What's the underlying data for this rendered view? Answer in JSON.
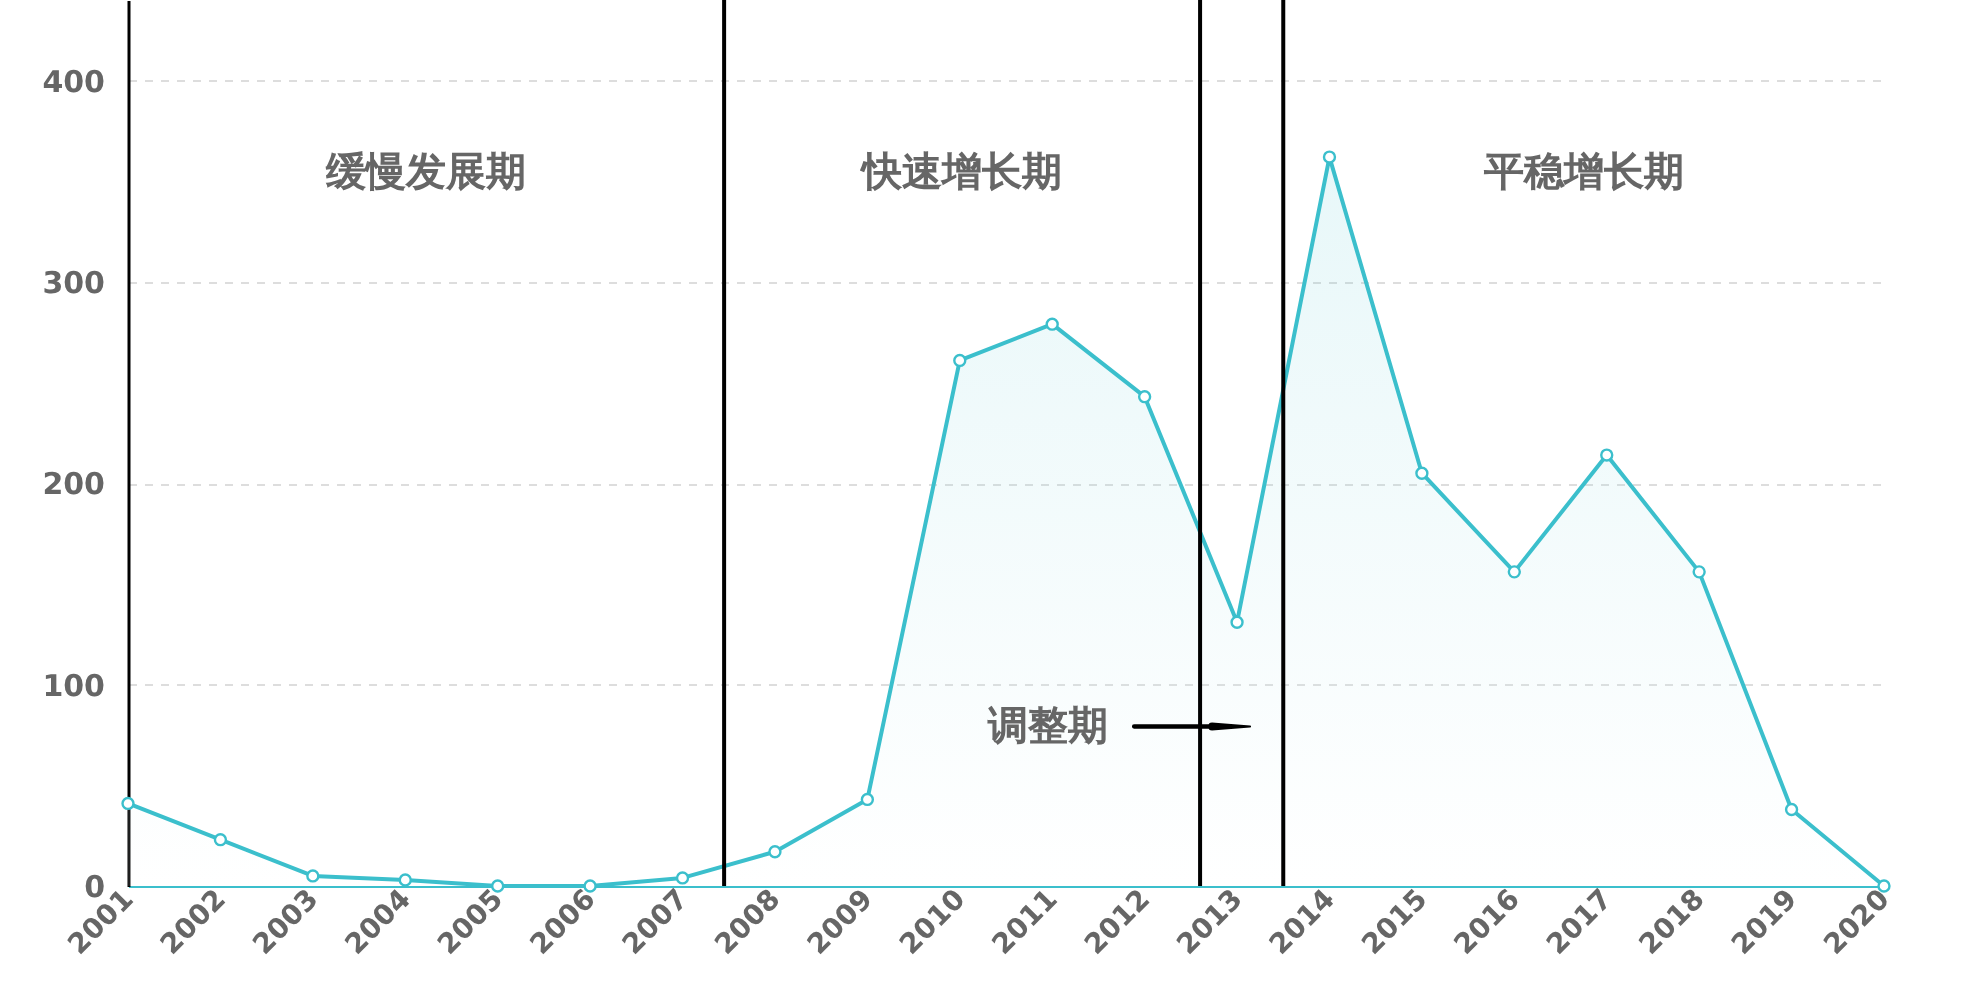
{
  "chart_data": {
    "type": "area",
    "x": [
      2001,
      2002,
      2003,
      2004,
      2005,
      2006,
      2007,
      2008,
      2009,
      2010,
      2011,
      2012,
      2013,
      2014,
      2015,
      2016,
      2017,
      2018,
      2019,
      2020
    ],
    "series": [
      {
        "color": "#3bbfcc",
        "values": [
          41,
          23,
          5,
          3,
          0,
          0,
          4,
          17,
          43,
          261,
          279,
          243,
          131,
          362,
          205,
          156,
          214,
          156,
          38,
          0
        ]
      }
    ],
    "xlim": [
      2001,
      2020
    ],
    "xticks": [
      2001,
      2002,
      2003,
      2004,
      2005,
      2006,
      2007,
      2008,
      2009,
      2010,
      2011,
      2012,
      2013,
      2014,
      2015,
      2016,
      2017,
      2018,
      2019,
      2020
    ],
    "ylim": [
      0,
      440
    ],
    "yticks": [
      0,
      100,
      200,
      300,
      400
    ],
    "grid": "y",
    "marker": "circle",
    "line_style": "solid",
    "ref_lines": [
      {
        "axis": "x",
        "value": 2007.45,
        "color": "#000000"
      },
      {
        "axis": "x",
        "value": 2012.6,
        "color": "#000000"
      },
      {
        "axis": "x",
        "value": 2013.5,
        "color": "#000000"
      }
    ],
    "annotations": [
      "缓慢发展期",
      "快速增长期",
      "调整期",
      "平稳增长期"
    ]
  }
}
